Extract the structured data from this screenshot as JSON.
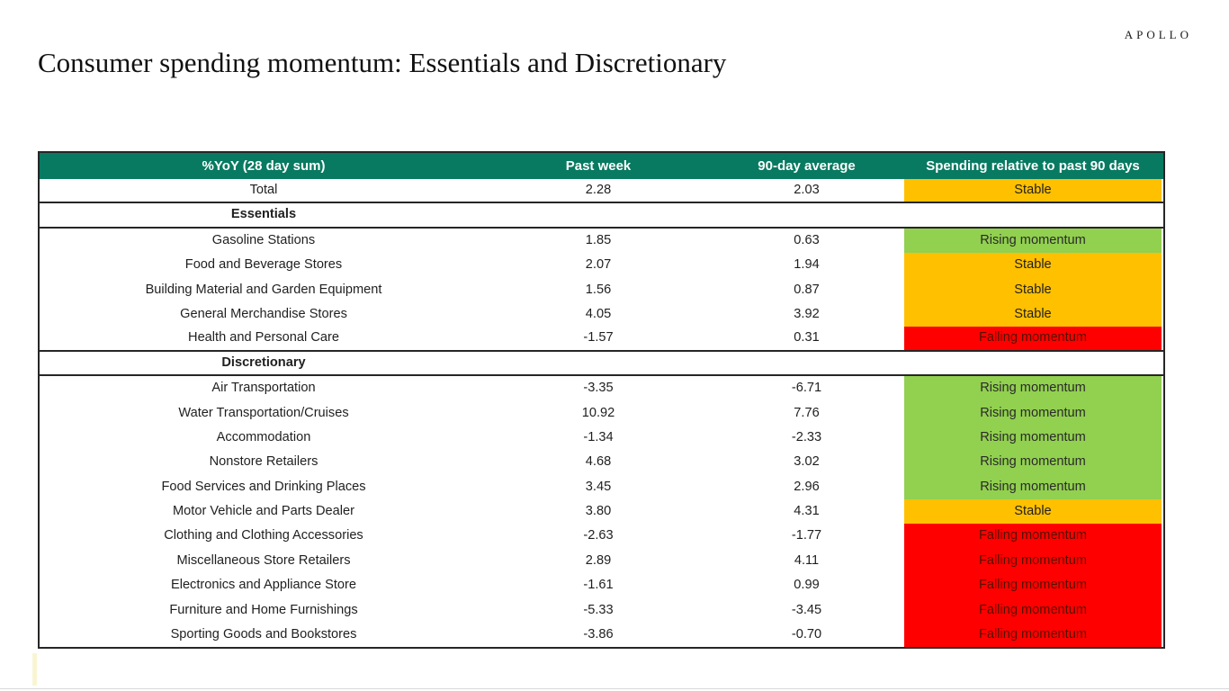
{
  "brand": {
    "logo_text": "APOLLO"
  },
  "title": "Consumer spending momentum: Essentials and Discretionary",
  "table": {
    "header_bg": "#087a61",
    "header_text_color": "#ffffff",
    "headers": [
      "%YoY (28 day sum)",
      "Past week",
      "90-day average",
      "Spending relative to past 90 days"
    ],
    "status_styles": {
      "rising": {
        "bg": "#92d050",
        "text": "#2a2a2a"
      },
      "stable": {
        "bg": "#ffc000",
        "text": "#1f1f1f"
      },
      "falling": {
        "bg": "#ff0000",
        "text": "#551100"
      }
    },
    "rows": [
      {
        "label": "Total",
        "past_week": "2.28",
        "avg_90day": "2.03",
        "status": "Stable",
        "status_key": "stable",
        "section": false,
        "divider": true
      },
      {
        "label": "Essentials",
        "past_week": "",
        "avg_90day": "",
        "status": "",
        "status_key": "",
        "section": true,
        "divider": true
      },
      {
        "label": "Gasoline Stations",
        "past_week": "1.85",
        "avg_90day": "0.63",
        "status": "Rising momentum",
        "status_key": "rising",
        "section": false,
        "divider": false
      },
      {
        "label": "Food and Beverage Stores",
        "past_week": "2.07",
        "avg_90day": "1.94",
        "status": "Stable",
        "status_key": "stable",
        "section": false,
        "divider": false
      },
      {
        "label": "Building Material and Garden Equipment",
        "past_week": "1.56",
        "avg_90day": "0.87",
        "status": "Stable",
        "status_key": "stable",
        "section": false,
        "divider": false
      },
      {
        "label": "General Merchandise Stores",
        "past_week": "4.05",
        "avg_90day": "3.92",
        "status": "Stable",
        "status_key": "stable",
        "section": false,
        "divider": false
      },
      {
        "label": "Health and Personal Care",
        "past_week": "-1.57",
        "avg_90day": "0.31",
        "status": "Falling momentum",
        "status_key": "falling",
        "section": false,
        "divider": true
      },
      {
        "label": "Discretionary",
        "past_week": "",
        "avg_90day": "",
        "status": "",
        "status_key": "",
        "section": true,
        "divider": true
      },
      {
        "label": "Air Transportation",
        "past_week": "-3.35",
        "avg_90day": "-6.71",
        "status": "Rising momentum",
        "status_key": "rising",
        "section": false,
        "divider": false
      },
      {
        "label": "Water Transportation/Cruises",
        "past_week": "10.92",
        "avg_90day": "7.76",
        "status": "Rising momentum",
        "status_key": "rising",
        "section": false,
        "divider": false
      },
      {
        "label": "Accommodation",
        "past_week": "-1.34",
        "avg_90day": "-2.33",
        "status": "Rising momentum",
        "status_key": "rising",
        "section": false,
        "divider": false
      },
      {
        "label": "Nonstore Retailers",
        "past_week": "4.68",
        "avg_90day": "3.02",
        "status": "Rising momentum",
        "status_key": "rising",
        "section": false,
        "divider": false
      },
      {
        "label": "Food Services and Drinking Places",
        "past_week": "3.45",
        "avg_90day": "2.96",
        "status": "Rising momentum",
        "status_key": "rising",
        "section": false,
        "divider": false
      },
      {
        "label": "Motor Vehicle and Parts Dealer",
        "past_week": "3.80",
        "avg_90day": "4.31",
        "status": "Stable",
        "status_key": "stable",
        "section": false,
        "divider": false
      },
      {
        "label": "Clothing and Clothing Accessories",
        "past_week": "-2.63",
        "avg_90day": "-1.77",
        "status": "Falling momentum",
        "status_key": "falling",
        "section": false,
        "divider": false
      },
      {
        "label": "Miscellaneous Store Retailers",
        "past_week": "2.89",
        "avg_90day": "4.11",
        "status": "Falling momentum",
        "status_key": "falling",
        "section": false,
        "divider": false
      },
      {
        "label": "Electronics and Appliance Store",
        "past_week": "-1.61",
        "avg_90day": "0.99",
        "status": "Falling momentum",
        "status_key": "falling",
        "section": false,
        "divider": false
      },
      {
        "label": "Furniture and Home Furnishings",
        "past_week": "-5.33",
        "avg_90day": "-3.45",
        "status": "Falling momentum",
        "status_key": "falling",
        "section": false,
        "divider": false
      },
      {
        "label": "Sporting Goods and Bookstores",
        "past_week": "-3.86",
        "avg_90day": "-0.70",
        "status": "Falling momentum",
        "status_key": "falling",
        "section": false,
        "divider": false
      }
    ]
  },
  "chart_data": {
    "type": "table",
    "title": "Consumer spending momentum: Essentials and Discretionary",
    "columns": [
      "%YoY (28 day sum)",
      "Past week",
      "90-day average",
      "Spending relative to past 90 days"
    ],
    "sections": {
      "Essentials": [
        "Gasoline Stations",
        "Food and Beverage Stores",
        "Building Material and Garden Equipment",
        "General Merchandise Stores",
        "Health and Personal Care"
      ],
      "Discretionary": [
        "Air Transportation",
        "Water Transportation/Cruises",
        "Accommodation",
        "Nonstore Retailers",
        "Food Services and Drinking Places",
        "Motor Vehicle and Parts Dealer",
        "Clothing and Clothing Accessories",
        "Miscellaneous Store Retailers",
        "Electronics and Appliance Store",
        "Furniture and Home Furnishings",
        "Sporting Goods and Bookstores"
      ]
    },
    "rows": [
      [
        "Total",
        2.28,
        2.03,
        "Stable"
      ],
      [
        "Gasoline Stations",
        1.85,
        0.63,
        "Rising momentum"
      ],
      [
        "Food and Beverage Stores",
        2.07,
        1.94,
        "Stable"
      ],
      [
        "Building Material and Garden Equipment",
        1.56,
        0.87,
        "Stable"
      ],
      [
        "General Merchandise Stores",
        4.05,
        3.92,
        "Stable"
      ],
      [
        "Health and Personal Care",
        -1.57,
        0.31,
        "Falling momentum"
      ],
      [
        "Air Transportation",
        -3.35,
        -6.71,
        "Rising momentum"
      ],
      [
        "Water Transportation/Cruises",
        10.92,
        7.76,
        "Rising momentum"
      ],
      [
        "Accommodation",
        -1.34,
        -2.33,
        "Rising momentum"
      ],
      [
        "Nonstore Retailers",
        4.68,
        3.02,
        "Rising momentum"
      ],
      [
        "Food Services and Drinking Places",
        3.45,
        2.96,
        "Rising momentum"
      ],
      [
        "Motor Vehicle and Parts Dealer",
        3.8,
        4.31,
        "Stable"
      ],
      [
        "Clothing and Clothing Accessories",
        -2.63,
        -1.77,
        "Falling momentum"
      ],
      [
        "Miscellaneous Store Retailers",
        2.89,
        4.11,
        "Falling momentum"
      ],
      [
        "Electronics and Appliance Store",
        -1.61,
        0.99,
        "Falling momentum"
      ],
      [
        "Furniture and Home Furnishings",
        -5.33,
        -3.45,
        "Falling momentum"
      ],
      [
        "Sporting Goods and Bookstores",
        -3.86,
        -0.7,
        "Falling momentum"
      ]
    ],
    "status_legend": {
      "Rising momentum": "#92d050",
      "Stable": "#ffc000",
      "Falling momentum": "#ff0000"
    }
  }
}
